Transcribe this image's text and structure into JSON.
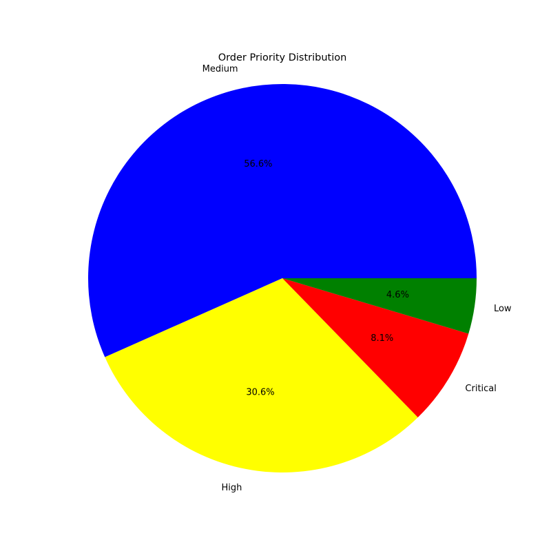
{
  "chart_data": {
    "type": "pie",
    "title": "Order Priority Distribution",
    "slices": [
      {
        "label": "Medium",
        "value": 56.6,
        "pct_label": "56.6%",
        "color": "#0000ff"
      },
      {
        "label": "High",
        "value": 30.6,
        "pct_label": "30.6%",
        "color": "#ffff00"
      },
      {
        "label": "Critical",
        "value": 8.1,
        "pct_label": "8.1%",
        "color": "#ff0000"
      },
      {
        "label": "Low",
        "value": 4.6,
        "pct_label": "4.6%",
        "color": "#008000"
      }
    ],
    "start_angle_deg": 0,
    "direction": "counterclockwise",
    "legend": "none"
  }
}
